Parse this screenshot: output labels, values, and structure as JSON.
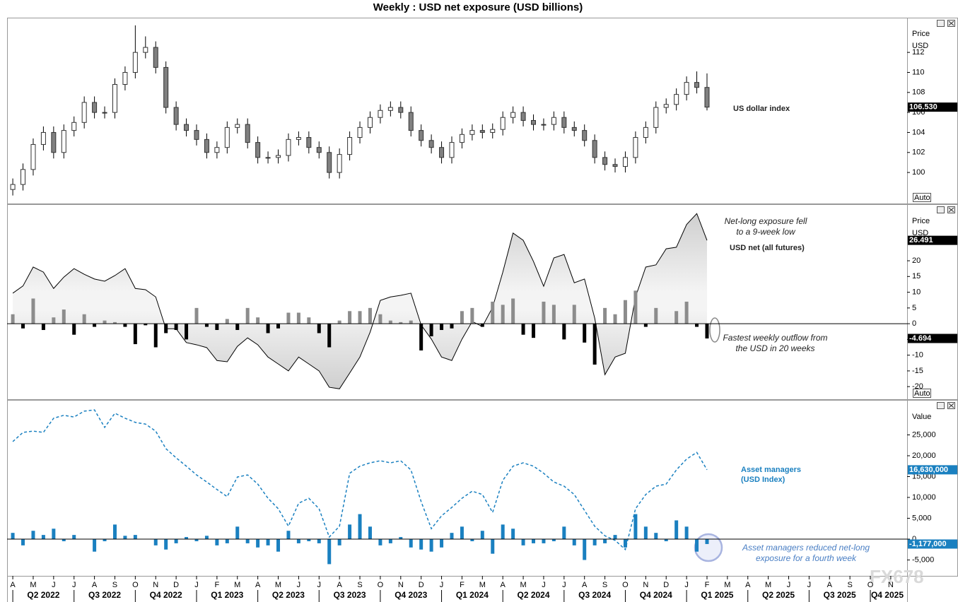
{
  "watermark": "FX678",
  "chart_data": [
    {
      "type": "candlestick",
      "title": "Weekly : USD net exposure (USD billions)",
      "y_axis_label": "Price",
      "y_unit_label": "USD",
      "scale_mode": "Auto",
      "xlim": [
        -0.28,
        43.8
      ],
      "ylim": [
        96.9,
        115.4
      ],
      "yticks": [
        100,
        102,
        104,
        106,
        108,
        110,
        112
      ],
      "x": [
        0,
        0.5,
        1,
        1.5,
        2,
        2.5,
        3,
        3.5,
        4,
        4.5,
        5,
        5.5,
        6,
        6.5,
        7,
        7.5,
        8,
        8.5,
        9,
        9.5,
        10,
        10.5,
        11,
        11.5,
        12,
        12.5,
        13,
        13.5,
        14,
        14.5,
        15,
        15.5,
        16,
        16.5,
        17,
        17.5,
        18,
        18.5,
        19,
        19.5,
        20,
        20.5,
        21,
        21.5,
        22,
        22.5,
        23,
        23.5,
        24,
        24.5,
        25,
        25.5,
        26,
        26.5,
        27,
        27.5,
        28,
        28.5,
        29,
        29.5,
        30,
        30.5,
        31,
        31.5,
        32,
        32.5,
        33,
        33.5,
        34
      ],
      "series": [
        {
          "name": "US dollar index",
          "type": "candlestick",
          "up_color": "#ffffff",
          "down_color": "#808080",
          "last_value_label": "106.530",
          "open": [
            98.3,
            98.8,
            100.3,
            102.8,
            104,
            102,
            104.2,
            105,
            107,
            106,
            106,
            108.8,
            110,
            112,
            112.5,
            110.5,
            106.5,
            104.8,
            104.2,
            103.3,
            102,
            102.5,
            104.5,
            104.8,
            103,
            101.5,
            101.5,
            101.7,
            103.3,
            103.5,
            102.5,
            102,
            100,
            101.8,
            103.5,
            104.5,
            105.5,
            106.2,
            106.5,
            106,
            104.2,
            103.2,
            102.5,
            101.5,
            103,
            103.8,
            104.2,
            104,
            104.3,
            105.5,
            106,
            105.2,
            104.8,
            104.8,
            105.5,
            104.5,
            104.2,
            103.2,
            101.5,
            100.8,
            100.6,
            101.5,
            103.5,
            104.5,
            106.5,
            106.8,
            107.8,
            109,
            108.5
          ],
          "high": [
            99.4,
            100.9,
            103.4,
            104.6,
            104.6,
            104.8,
            105.6,
            107.6,
            107.6,
            106.6,
            109.4,
            110.6,
            114.7,
            113.6,
            113.1,
            111.1,
            107.1,
            105.4,
            104.8,
            103.9,
            103.1,
            105.1,
            105.4,
            105.4,
            103.6,
            102.1,
            102.3,
            103.9,
            104.1,
            104.1,
            103.1,
            102.6,
            102.4,
            104.1,
            105.1,
            106.1,
            106.8,
            107.1,
            107.1,
            106.6,
            104.8,
            103.8,
            103.1,
            103.6,
            104.4,
            104.8,
            104.8,
            104.9,
            106.1,
            106.6,
            106.6,
            105.8,
            105.4,
            106.1,
            106.1,
            105.1,
            104.8,
            103.8,
            102.1,
            101.4,
            102.1,
            104.1,
            105.1,
            107.1,
            107.4,
            108.4,
            109.6,
            110.1,
            109.9
          ],
          "low": [
            97.7,
            98.2,
            99.7,
            102.2,
            101.4,
            101.4,
            103.6,
            104.4,
            105.4,
            105.4,
            105.4,
            108.2,
            109.4,
            111.4,
            109.9,
            105.9,
            104.2,
            103.6,
            102.7,
            101.4,
            101.4,
            101.9,
            103.9,
            102.4,
            100.9,
            100.9,
            100.9,
            101.1,
            102.7,
            101.9,
            101.4,
            99.4,
            99.4,
            101.2,
            102.9,
            103.9,
            104.9,
            105.6,
            105.4,
            103.6,
            102.6,
            101.9,
            100.9,
            100.9,
            102.4,
            103.2,
            103.4,
            103.4,
            103.7,
            104.9,
            104.6,
            104.2,
            104.2,
            104.2,
            103.9,
            103.6,
            102.6,
            100.9,
            100.2,
            100.0,
            100.0,
            100.9,
            102.9,
            103.9,
            105.9,
            106.2,
            107.2,
            107.9,
            106.2
          ],
          "close": [
            98.8,
            100.3,
            102.8,
            104,
            102,
            104.2,
            105,
            107,
            106,
            106,
            108.8,
            110,
            112,
            112.5,
            110.5,
            106.5,
            104.8,
            104.2,
            103.3,
            102,
            102.5,
            104.5,
            104.8,
            103,
            101.5,
            101.5,
            101.7,
            103.3,
            103.5,
            102.5,
            102,
            100,
            101.8,
            103.5,
            104.5,
            105.5,
            106.2,
            106.5,
            106,
            104.2,
            103.2,
            102.5,
            101.5,
            103,
            103.8,
            104.2,
            104,
            104.3,
            105.5,
            106,
            105.2,
            104.8,
            104.8,
            105.5,
            104.5,
            104.2,
            103.2,
            101.5,
            100.8,
            100.6,
            101.5,
            103.5,
            104.5,
            106.5,
            106.8,
            107.8,
            109,
            108.5,
            106.53
          ]
        }
      ]
    },
    {
      "type": "area",
      "y_axis_label": "Price",
      "y_unit_label": "USD",
      "scale_mode": "Auto",
      "zero_line": true,
      "xlim": [
        -0.28,
        43.8
      ],
      "ylim": [
        -24.0,
        37.75
      ],
      "yticks": [
        -20,
        -15,
        -10,
        -5,
        0,
        5,
        10,
        15,
        20
      ],
      "annotations": [
        "Net-long exposure fell to a 9-week low",
        "Fastest weekly outflow from the USD in 20 weeks"
      ],
      "x": [
        0,
        0.5,
        1,
        1.5,
        2,
        2.5,
        3,
        3.5,
        4,
        4.5,
        5,
        5.5,
        6,
        6.5,
        7,
        7.5,
        8,
        8.5,
        9,
        9.5,
        10,
        10.5,
        11,
        11.5,
        12,
        12.5,
        13,
        13.5,
        14,
        14.5,
        15,
        15.5,
        16,
        16.5,
        17,
        17.5,
        18,
        18.5,
        19,
        19.5,
        20,
        20.5,
        21,
        21.5,
        22,
        22.5,
        23,
        23.5,
        24,
        24.5,
        25,
        25.5,
        26,
        26.5,
        27,
        27.5,
        28,
        28.5,
        29,
        29.5,
        30,
        30.5,
        31,
        31.5,
        32,
        32.5,
        33,
        33.5,
        34
      ],
      "series": [
        {
          "name": "USD net (all futures)",
          "type": "area",
          "color": "#000000",
          "last_value_label": "26.491",
          "values": [
            9.7,
            12,
            18,
            16.4,
            11.2,
            14.8,
            17.5,
            15.7,
            14.2,
            13.5,
            15.3,
            17.5,
            11.2,
            10.8,
            8.5,
            -1.6,
            -1.6,
            -6,
            -6.7,
            -7.6,
            -11.7,
            -12.1,
            -7.2,
            -4.5,
            -6.7,
            -10.6,
            -12.8,
            -15,
            -10.6,
            -12.8,
            -15,
            -20.2,
            -20.7,
            -15.7,
            -10.6,
            -2.7,
            7.4,
            8.5,
            9,
            9.7,
            -0.4,
            -4.9,
            -10.6,
            -11.7,
            -4.9,
            0.7,
            -0.9,
            5.2,
            16.4,
            28.8,
            26.5,
            19.8,
            11.9,
            20.9,
            22,
            13,
            14.2,
            1.8,
            -16.2,
            -10.6,
            -9.4,
            8.5,
            18,
            18.7,
            23.8,
            24.3,
            31.5,
            35,
            26.491
          ]
        },
        {
          "type": "bar",
          "color": "#8c8c8c",
          "negative_color": "#000000",
          "last_value_label": "-4.694",
          "values": [
            3,
            -1.5,
            8,
            -2,
            2,
            4.5,
            -3.5,
            3,
            -1,
            1,
            0.5,
            -1,
            -6.5,
            -0.5,
            -7.5,
            -3,
            -2,
            -5,
            5,
            -1,
            -2,
            1.5,
            -2,
            5,
            2,
            -3,
            -1.5,
            3.5,
            3.5,
            2,
            -3,
            -7.5,
            1,
            4,
            4,
            5,
            3,
            1,
            0.5,
            1,
            -8.5,
            -4,
            -2,
            -1.5,
            4,
            5,
            -1,
            7,
            6,
            8,
            -3.5,
            -4.5,
            7,
            6,
            -5,
            6,
            -6,
            -13,
            5,
            3,
            7.5,
            10.5,
            -1,
            5,
            0,
            4,
            7,
            -1,
            -4.694
          ]
        }
      ]
    },
    {
      "type": "line",
      "y_axis_label": "Value",
      "zero_line": true,
      "xlim": [
        -0.28,
        43.8
      ],
      "ylim": [
        -8810,
        33220
      ],
      "yticks": [
        {
          "value": -5000,
          "label": "-5,000"
        },
        0,
        {
          "value": 5000,
          "label": "5,000"
        },
        {
          "value": 10000,
          "label": "10,000"
        },
        {
          "value": 15000,
          "label": "15,000"
        },
        {
          "value": 20000,
          "label": "20,000"
        },
        {
          "value": 25000,
          "label": "25,000"
        }
      ],
      "annotations": [
        "Asset managers reduced net-long exposure for a fourth week"
      ],
      "xticks": [
        {
          "value": 0,
          "label": "A"
        },
        {
          "value": 1,
          "label": "M"
        },
        {
          "value": 2,
          "label": "J"
        },
        {
          "value": 3,
          "label": "J"
        },
        {
          "value": 4,
          "label": "A"
        },
        {
          "value": 5,
          "label": "S"
        },
        {
          "value": 6,
          "label": "O"
        },
        {
          "value": 7,
          "label": "N"
        },
        {
          "value": 8,
          "label": "D"
        },
        {
          "value": 9,
          "label": "J"
        },
        {
          "value": 10,
          "label": "F"
        },
        {
          "value": 11,
          "label": "M"
        },
        {
          "value": 12,
          "label": "A"
        },
        {
          "value": 13,
          "label": "M"
        },
        {
          "value": 14,
          "label": "J"
        },
        {
          "value": 15,
          "label": "J"
        },
        {
          "value": 16,
          "label": "A"
        },
        {
          "value": 17,
          "label": "S"
        },
        {
          "value": 18,
          "label": "O"
        },
        {
          "value": 19,
          "label": "N"
        },
        {
          "value": 20,
          "label": "D"
        },
        {
          "value": 21,
          "label": "J"
        },
        {
          "value": 22,
          "label": "F"
        },
        {
          "value": 23,
          "label": "M"
        },
        {
          "value": 24,
          "label": "A"
        },
        {
          "value": 25,
          "label": "M"
        },
        {
          "value": 26,
          "label": "J"
        },
        {
          "value": 27,
          "label": "J"
        },
        {
          "value": 28,
          "label": "A"
        },
        {
          "value": 29,
          "label": "S"
        },
        {
          "value": 30,
          "label": "O"
        },
        {
          "value": 31,
          "label": "N"
        },
        {
          "value": 32,
          "label": "D"
        },
        {
          "value": 33,
          "label": "J"
        },
        {
          "value": 34,
          "label": "F"
        },
        {
          "value": 35,
          "label": "M"
        },
        {
          "value": 36,
          "label": "A"
        },
        {
          "value": 37,
          "label": "M"
        },
        {
          "value": 38,
          "label": "J"
        },
        {
          "value": 39,
          "label": "J"
        },
        {
          "value": 40,
          "label": "A"
        },
        {
          "value": 41,
          "label": "S"
        },
        {
          "value": 42,
          "label": "O"
        },
        {
          "value": 43,
          "label": "N"
        }
      ],
      "quarter_labels": [
        {
          "value": 1.5,
          "label": "Q2 2022"
        },
        {
          "value": 4.5,
          "label": "Q3 2022"
        },
        {
          "value": 7.5,
          "label": "Q4 2022"
        },
        {
          "value": 10.5,
          "label": "Q1 2023"
        },
        {
          "value": 13.5,
          "label": "Q2 2023"
        },
        {
          "value": 16.5,
          "label": "Q3 2023"
        },
        {
          "value": 19.5,
          "label": "Q4 2023"
        },
        {
          "value": 22.5,
          "label": "Q1 2024"
        },
        {
          "value": 25.5,
          "label": "Q2 2024"
        },
        {
          "value": 28.5,
          "label": "Q3 2024"
        },
        {
          "value": 31.5,
          "label": "Q4 2024"
        },
        {
          "value": 34.5,
          "label": "Q1 2025"
        },
        {
          "value": 37.5,
          "label": "Q2 2025"
        },
        {
          "value": 40.5,
          "label": "Q3 2025"
        },
        {
          "value": 43.5,
          "label": "Q4 2025"
        }
      ],
      "x": [
        0,
        0.5,
        1,
        1.5,
        2,
        2.5,
        3,
        3.5,
        4,
        4.5,
        5,
        5.5,
        6,
        6.5,
        7,
        7.5,
        8,
        8.5,
        9,
        9.5,
        10,
        10.5,
        11,
        11.5,
        12,
        12.5,
        13,
        13.5,
        14,
        14.5,
        15,
        15.5,
        16,
        16.5,
        17,
        17.5,
        18,
        18.5,
        19,
        19.5,
        20,
        20.5,
        21,
        21.5,
        22,
        22.5,
        23,
        23.5,
        24,
        24.5,
        25,
        25.5,
        26,
        26.5,
        27,
        27.5,
        28,
        28.5,
        29,
        29.5,
        30,
        30.5,
        31,
        31.5,
        32,
        32.5,
        33,
        33.5,
        34
      ],
      "series": [
        {
          "name": "Asset managers (USD Index)",
          "type": "line",
          "dashed": true,
          "color": "#1a80c0",
          "last_value_label": "16,630,000",
          "values": [
            23400,
            25600,
            25900,
            25600,
            29000,
            29700,
            29300,
            30700,
            31000,
            26800,
            30200,
            29000,
            28000,
            27600,
            25900,
            21700,
            19500,
            17500,
            15400,
            13700,
            11900,
            10200,
            14900,
            15400,
            13200,
            9800,
            7300,
            3100,
            8600,
            9800,
            7300,
            500,
            3100,
            15800,
            17500,
            18300,
            18800,
            18300,
            18800,
            16600,
            9000,
            2500,
            5600,
            7600,
            9800,
            11500,
            10700,
            6400,
            14100,
            17500,
            18300,
            17500,
            15800,
            13700,
            12700,
            10700,
            6900,
            3100,
            800,
            -300,
            -2500,
            7300,
            10700,
            12700,
            13200,
            16600,
            19200,
            20800,
            16630
          ]
        },
        {
          "type": "bar",
          "color": "#1a80c0",
          "negative_color": "#1a80c0",
          "last_value_label": "-1,177,000",
          "values": [
            1500,
            -1500,
            2000,
            1000,
            2500,
            -500,
            1000,
            0,
            -3000,
            -500,
            3500,
            800,
            1000,
            0,
            -1500,
            -2500,
            -1000,
            500,
            -500,
            800,
            -1500,
            -1000,
            3000,
            -1000,
            -2000,
            -1500,
            -3000,
            2000,
            -1000,
            -500,
            -1000,
            -6000,
            -1500,
            3500,
            6000,
            3000,
            -1500,
            -1000,
            500,
            -2000,
            -2500,
            -3000,
            -2000,
            1500,
            3000,
            -500,
            2000,
            -3500,
            3500,
            2500,
            -1500,
            -1000,
            -1000,
            -500,
            3000,
            -1500,
            -5000,
            -1500,
            -1000,
            1000,
            -2000,
            6000,
            3000,
            1500,
            -500,
            4500,
            3000,
            -3000,
            -1177
          ]
        }
      ]
    }
  ]
}
